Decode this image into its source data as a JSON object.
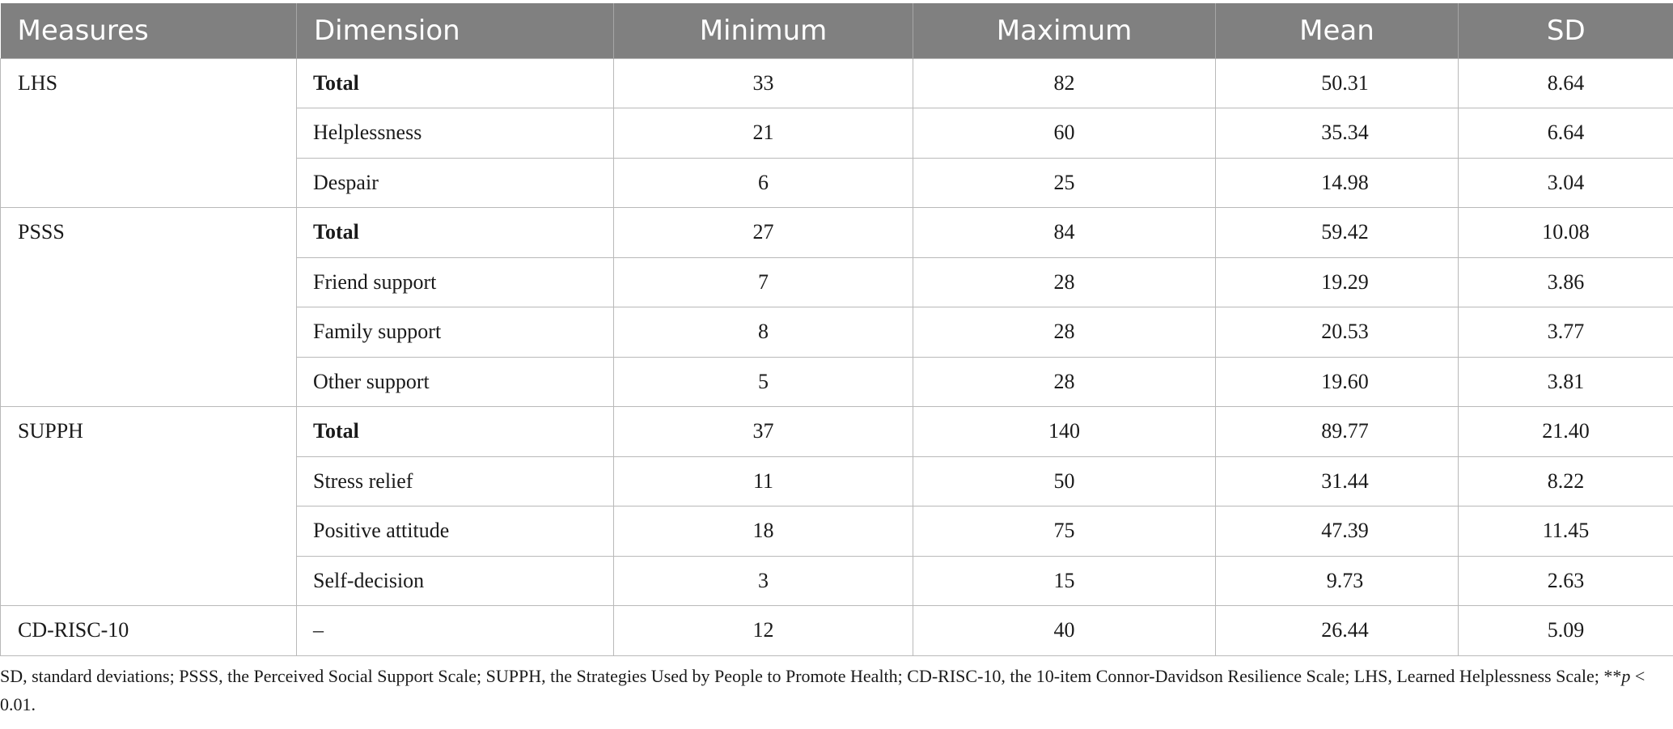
{
  "table": {
    "headers": [
      "Measures",
      "Dimension",
      "Minimum",
      "Maximum",
      "Mean",
      "SD"
    ],
    "groups": [
      {
        "measure": "LHS",
        "rows": [
          {
            "dimension": "Total",
            "bold": true,
            "min": "33",
            "max": "82",
            "mean": "50.31",
            "sd": "8.64"
          },
          {
            "dimension": "Helplessness",
            "bold": false,
            "min": "21",
            "max": "60",
            "mean": "35.34",
            "sd": "6.64"
          },
          {
            "dimension": "Despair",
            "bold": false,
            "min": "6",
            "max": "25",
            "mean": "14.98",
            "sd": "3.04"
          }
        ]
      },
      {
        "measure": "PSSS",
        "rows": [
          {
            "dimension": "Total",
            "bold": true,
            "min": "27",
            "max": "84",
            "mean": "59.42",
            "sd": "10.08"
          },
          {
            "dimension": "Friend support",
            "bold": false,
            "min": "7",
            "max": "28",
            "mean": "19.29",
            "sd": "3.86"
          },
          {
            "dimension": "Family support",
            "bold": false,
            "min": "8",
            "max": "28",
            "mean": "20.53",
            "sd": "3.77"
          },
          {
            "dimension": "Other support",
            "bold": false,
            "min": "5",
            "max": "28",
            "mean": "19.60",
            "sd": "3.81"
          }
        ]
      },
      {
        "measure": "SUPPH",
        "rows": [
          {
            "dimension": "Total",
            "bold": true,
            "min": "37",
            "max": "140",
            "mean": "89.77",
            "sd": "21.40"
          },
          {
            "dimension": "Stress relief",
            "bold": false,
            "min": "11",
            "max": "50",
            "mean": "31.44",
            "sd": "8.22"
          },
          {
            "dimension": "Positive attitude",
            "bold": false,
            "min": "18",
            "max": "75",
            "mean": "47.39",
            "sd": "11.45"
          },
          {
            "dimension": "Self-decision",
            "bold": false,
            "min": "3",
            "max": "15",
            "mean": "9.73",
            "sd": "2.63"
          }
        ]
      },
      {
        "measure": "CD-RISC-10",
        "rows": [
          {
            "dimension": "–",
            "bold": false,
            "min": "12",
            "max": "40",
            "mean": "26.44",
            "sd": "5.09"
          }
        ]
      }
    ]
  },
  "footnote": {
    "main": "SD, standard deviations; PSSS, the Perceived Social Support Scale; SUPPH, the Strategies Used by People to Promote Health; CD-RISC-10, the 10-item Connor-Davidson Resilience Scale; LHS, Learned Helplessness Scale; **",
    "p_symbol": "p",
    "p_rest": " < 0.01."
  }
}
